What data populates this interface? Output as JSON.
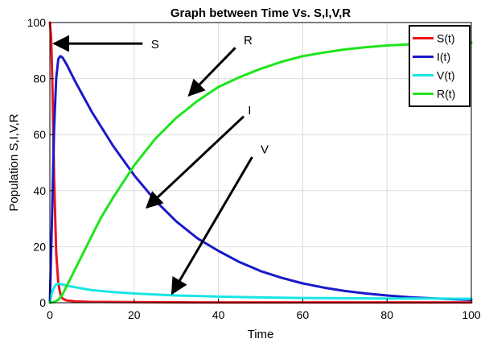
{
  "chart_data": {
    "type": "line",
    "title": "Graph between Time Vs. S,I,V,R",
    "xlabel": "Time",
    "ylabel": "Population S,I,V,R",
    "xlim": [
      0,
      100
    ],
    "ylim": [
      0,
      100
    ],
    "xticks": [
      "0",
      "20",
      "40",
      "60",
      "80",
      "100"
    ],
    "yticks": [
      "0",
      "20",
      "40",
      "60",
      "80",
      "100"
    ],
    "grid": true,
    "legend_position": "top-right",
    "series": [
      {
        "name": "S(t)",
        "color": "#e8151b",
        "x": [
          0,
          0.3,
          0.6,
          1.0,
          1.5,
          2.0,
          2.5,
          3.0,
          4.0,
          6.0,
          10,
          20,
          40,
          60,
          80,
          100
        ],
        "y": [
          100,
          95,
          78,
          45,
          18,
          7,
          3,
          1.5,
          0.8,
          0.5,
          0.3,
          0.2,
          0.1,
          0.1,
          0.1,
          0.1
        ]
      },
      {
        "name": "I(t)",
        "color": "#1a19c8",
        "x": [
          0,
          0.5,
          1.0,
          1.5,
          2.0,
          2.5,
          3.0,
          4.0,
          5,
          6,
          8,
          10,
          15,
          20,
          25,
          30,
          35,
          40,
          45,
          50,
          55,
          60,
          65,
          70,
          75,
          80,
          85,
          90,
          95,
          100
        ],
        "y": [
          0,
          30,
          62,
          80,
          87,
          88,
          87.5,
          85,
          82,
          79,
          73.5,
          68,
          56,
          45.5,
          36.5,
          29,
          23,
          18.5,
          14.5,
          11.3,
          8.9,
          6.9,
          5.4,
          4.2,
          3.3,
          2.6,
          2.0,
          1.6,
          1.3,
          1.0
        ]
      },
      {
        "name": "V(t)",
        "color": "#19e5e5",
        "x": [
          0,
          0.5,
          1.0,
          1.5,
          2.0,
          3.0,
          5,
          8,
          10,
          15,
          20,
          30,
          40,
          50,
          60,
          70,
          80,
          90,
          100
        ],
        "y": [
          0,
          3.5,
          5.5,
          6.5,
          6.8,
          6.5,
          5.8,
          5.0,
          4.5,
          3.8,
          3.3,
          2.6,
          2.2,
          1.9,
          1.7,
          1.6,
          1.5,
          1.5,
          1.4
        ]
      },
      {
        "name": "R(t)",
        "color": "#1ee51e",
        "x": [
          0,
          1,
          2,
          3,
          5,
          8,
          10,
          12,
          15,
          20,
          25,
          30,
          35,
          40,
          45,
          50,
          55,
          60,
          65,
          70,
          75,
          80,
          85,
          90,
          95,
          100
        ],
        "y": [
          0,
          0.3,
          1,
          3,
          9,
          18,
          24,
          30,
          37.5,
          49,
          58.5,
          66,
          72,
          77,
          80.5,
          83.5,
          86,
          88,
          89.3,
          90.4,
          91.2,
          91.8,
          92.2,
          92.5,
          92.7,
          92.8
        ]
      }
    ],
    "annotations": [
      {
        "label": "S",
        "arrow_tail": [
          22,
          92.5
        ],
        "arrow_head": [
          1,
          92.5
        ],
        "label_pos": [
          24,
          92.5
        ]
      },
      {
        "label": "R",
        "arrow_tail": [
          44,
          91
        ],
        "arrow_head": [
          33,
          74
        ],
        "label_pos": [
          46,
          94
        ]
      },
      {
        "label": "I",
        "arrow_tail": [
          46,
          66.5
        ],
        "arrow_head": [
          23,
          34
        ],
        "label_pos": [
          47,
          69
        ]
      },
      {
        "label": "V",
        "arrow_tail": [
          48,
          52
        ],
        "arrow_head": [
          29,
          3.3
        ],
        "label_pos": [
          50,
          55
        ]
      }
    ]
  }
}
